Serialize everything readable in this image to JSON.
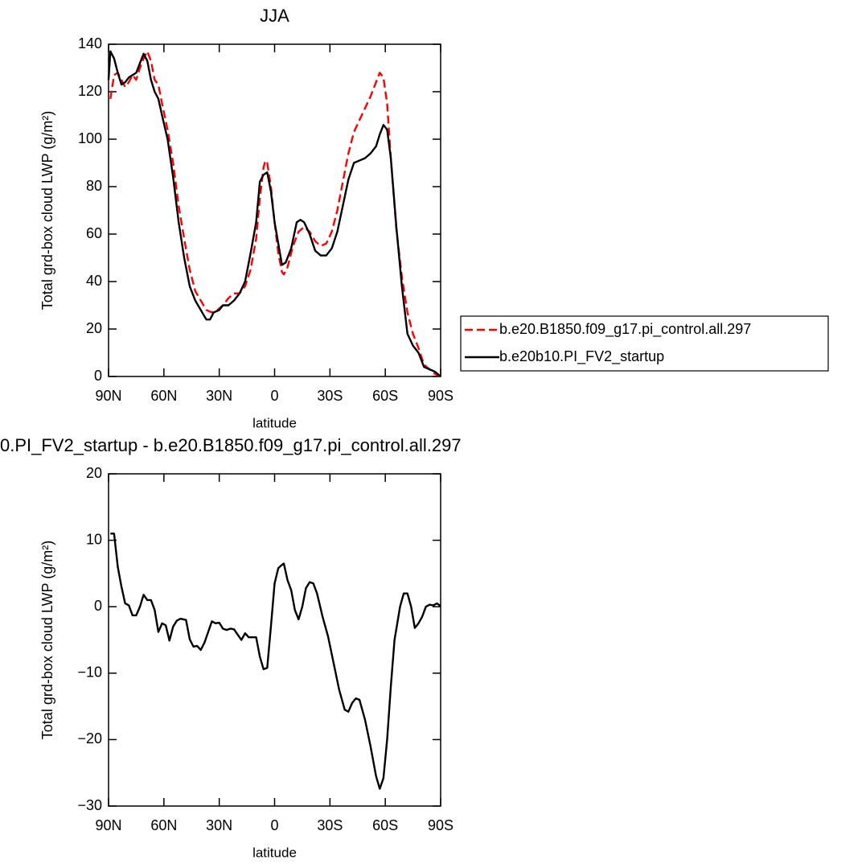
{
  "chart_data": [
    {
      "type": "line",
      "title": "JJA",
      "xlabel": "latitude",
      "ylabel": "Total grd-box cloud LWP (g/m²)",
      "xlim": [
        90,
        -90
      ],
      "ylim": [
        0,
        140
      ],
      "xticks": [
        {
          "value": 90,
          "label": "90N"
        },
        {
          "value": 60,
          "label": "60N"
        },
        {
          "value": 30,
          "label": "30N"
        },
        0,
        {
          "value": -30,
          "label": "30S"
        },
        {
          "value": -60,
          "label": "60S"
        },
        {
          "value": -90,
          "label": "90S"
        }
      ],
      "yticks": [
        0,
        20,
        40,
        60,
        80,
        100,
        120,
        140
      ],
      "legend": "outside-right",
      "series": [
        {
          "name": "b.e20.B1850.f09_g17.pi_control.all.297",
          "color": "#ff0000",
          "dashed": true,
          "x": [
            89,
            87,
            85,
            83,
            81,
            79,
            77,
            75,
            73,
            71,
            69,
            67,
            65,
            63,
            61,
            58,
            55,
            52,
            49,
            46,
            43,
            40,
            37,
            34,
            31,
            28,
            25,
            22,
            19,
            16,
            13,
            10,
            8,
            6,
            5,
            4,
            2,
            0,
            -2,
            -4,
            -5,
            -7,
            -10,
            -13,
            -16,
            -19,
            -22,
            -25,
            -28,
            -31,
            -34,
            -37,
            -40,
            -43,
            -46,
            -49,
            -52,
            -55,
            -57,
            -59,
            -61,
            -63,
            -66,
            -69,
            -72,
            -75,
            -78,
            -81,
            -84,
            -87,
            -90
          ],
          "values": [
            117,
            127,
            128,
            125,
            122,
            124,
            127,
            125,
            130,
            134,
            137,
            133,
            125,
            123,
            115,
            104,
            90,
            72,
            58,
            45,
            36,
            32,
            28,
            27,
            28,
            30,
            33,
            35,
            35,
            38,
            45,
            58,
            75,
            88,
            91,
            90,
            80,
            65,
            52,
            44,
            43,
            46,
            55,
            61,
            63,
            61,
            57,
            55,
            56,
            61,
            70,
            82,
            94,
            103,
            108,
            113,
            118,
            124,
            128,
            126,
            115,
            92,
            62,
            42,
            27,
            18,
            12,
            5,
            3,
            1,
            0
          ]
        },
        {
          "name": "b.e20b10.PI_FV2_startup",
          "color": "#000000",
          "dashed": false,
          "x": [
            90,
            89,
            87,
            85,
            83,
            81,
            79,
            77,
            75,
            73,
            71,
            69,
            67,
            65,
            63,
            61,
            58,
            55,
            52,
            49,
            46,
            43,
            40,
            37,
            35,
            33,
            30,
            28,
            25,
            22,
            19,
            16,
            13,
            10,
            8,
            6,
            4,
            2,
            0,
            -2,
            -4,
            -6,
            -9,
            -12,
            -14,
            -16,
            -19,
            -22,
            -25,
            -28,
            -31,
            -34,
            -37,
            -40,
            -43,
            -46,
            -49,
            -52,
            -55,
            -57,
            -59,
            -61,
            -63,
            -66,
            -69,
            -72,
            -75,
            -78,
            -81,
            -84,
            -87,
            -90
          ],
          "values": [
            125,
            137,
            134,
            128,
            123,
            124,
            126,
            127,
            128,
            132,
            136,
            133,
            125,
            120,
            117,
            110,
            100,
            84,
            65,
            50,
            38,
            32,
            28,
            24,
            24,
            27,
            28,
            30,
            30,
            32,
            35,
            40,
            52,
            65,
            82,
            85,
            86,
            78,
            65,
            56,
            47,
            48,
            54,
            65,
            66,
            65,
            60,
            53,
            51,
            51,
            54,
            61,
            72,
            83,
            90,
            91,
            92,
            94,
            97,
            102,
            106,
            104,
            92,
            63,
            38,
            18,
            13,
            10,
            4,
            3,
            2,
            0
          ]
        }
      ]
    },
    {
      "type": "line",
      "title": "0.PI_FV2_startup - b.e20.B1850.f09_g17.pi_control.all.297",
      "xlabel": "latitude",
      "ylabel": "Total grd-box cloud LWP (g/m²)",
      "xlim": [
        90,
        -90
      ],
      "ylim": [
        -30,
        20
      ],
      "xticks": [
        {
          "value": 90,
          "label": "90N"
        },
        {
          "value": 60,
          "label": "60N"
        },
        {
          "value": 30,
          "label": "30N"
        },
        0,
        {
          "value": -30,
          "label": "30S"
        },
        {
          "value": -60,
          "label": "60S"
        },
        {
          "value": -90,
          "label": "90S"
        }
      ],
      "yticks": [
        {
          "value": -30,
          "label": "−30"
        },
        {
          "value": -20,
          "label": "−20"
        },
        {
          "value": -10,
          "label": "−10"
        },
        0,
        10,
        20
      ],
      "series": [
        {
          "color": "#000000",
          "dashed": false,
          "x": [
            89,
            87,
            85,
            83,
            81,
            79,
            77,
            75,
            73,
            71,
            69,
            67,
            65,
            63,
            61,
            59,
            57,
            55,
            53,
            51,
            48,
            46,
            44,
            42,
            40,
            38,
            36,
            34,
            32,
            30,
            28,
            26,
            24,
            22,
            20,
            18,
            16,
            14,
            12,
            10,
            8,
            6,
            4,
            2,
            0,
            -2,
            -4,
            -5,
            -7,
            -9,
            -11,
            -13,
            -15,
            -17,
            -19,
            -21,
            -23,
            -26,
            -29,
            -32,
            -35,
            -38,
            -40,
            -42,
            -44,
            -46,
            -49,
            -52,
            -55,
            -57,
            -59,
            -61,
            -63,
            -65,
            -68,
            -70,
            -72,
            -74,
            -76,
            -78,
            -80,
            -82,
            -84,
            -86,
            -88,
            -90
          ],
          "values": [
            11,
            11,
            6,
            3,
            0.5,
            0.2,
            -1.3,
            -1.3,
            0,
            1.8,
            1,
            1,
            -0.5,
            -3.8,
            -2.5,
            -2.8,
            -5.1,
            -3,
            -2.1,
            -1.8,
            -2,
            -4.9,
            -6,
            -5.9,
            -6.5,
            -5.4,
            -3.8,
            -2.2,
            -2.5,
            -2.4,
            -3.3,
            -3.5,
            -3.3,
            -3.4,
            -4.2,
            -5,
            -4,
            -4.6,
            -4.6,
            -4.6,
            -7.5,
            -9.4,
            -9.2,
            -3,
            3.5,
            5.8,
            6.3,
            6.5,
            4,
            2.5,
            -0.5,
            -1.9,
            0,
            2.8,
            3.7,
            3.5,
            2,
            -1.5,
            -4.5,
            -8.5,
            -12.5,
            -15.5,
            -15.8,
            -14.5,
            -13.8,
            -14,
            -17,
            -21,
            -25.5,
            -27.4,
            -25.8,
            -20,
            -12,
            -5,
            0,
            2,
            2,
            0,
            -3.2,
            -2.5,
            -1.5,
            0,
            0.3,
            0.2,
            0.5,
            0.1
          ]
        }
      ]
    }
  ]
}
